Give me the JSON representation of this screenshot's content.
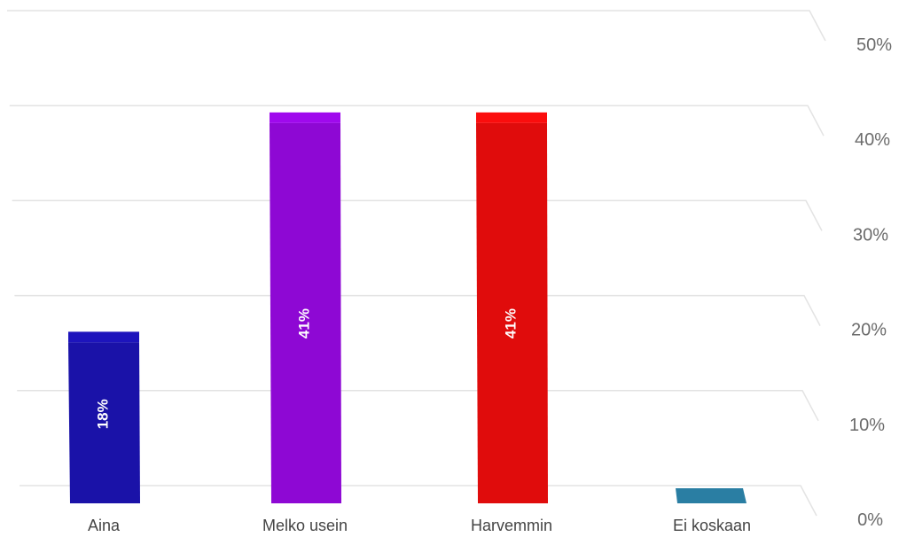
{
  "chart_data": {
    "type": "bar",
    "categories": [
      "Aina",
      "Melko usein",
      "Harvemmin",
      "Ei koskaan"
    ],
    "values": [
      18,
      41,
      41,
      1
    ],
    "data_labels": [
      "18%",
      "41%",
      "41%",
      ""
    ],
    "colors": [
      "#1a12a8",
      "#8e08d4",
      "#e00c0c",
      "#2a7ea3"
    ],
    "ylim": [
      0,
      50
    ],
    "yticks": [
      0,
      10,
      20,
      30,
      40,
      50
    ],
    "ytick_labels": [
      "0%",
      "10%",
      "20%",
      "30%",
      "40%",
      "50%"
    ],
    "y_axis_position": "right",
    "grid": true,
    "title": "",
    "xlabel": "",
    "ylabel": ""
  }
}
